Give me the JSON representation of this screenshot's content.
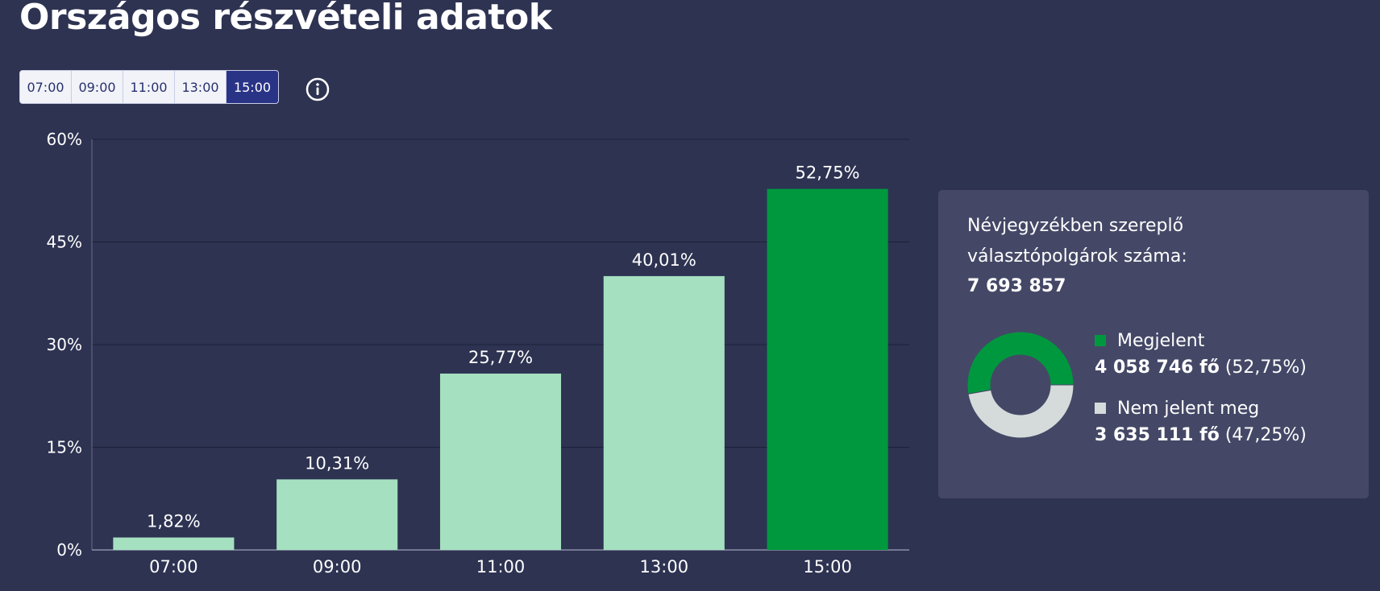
{
  "title": "Országos részvételi adatok",
  "time_tabs": [
    "07:00",
    "09:00",
    "11:00",
    "13:00",
    "15:00"
  ],
  "active_tab": "15:00",
  "chart_data": {
    "type": "bar",
    "categories": [
      "07:00",
      "09:00",
      "11:00",
      "13:00",
      "15:00"
    ],
    "values": [
      1.82,
      10.31,
      25.77,
      40.01,
      52.75
    ],
    "value_labels": [
      "1,82%",
      "10,31%",
      "25,77%",
      "40,01%",
      "52,75%"
    ],
    "ylim": [
      0,
      60
    ],
    "yticks": [
      0,
      15,
      30,
      45,
      60
    ],
    "ytick_labels": [
      "0%",
      "15%",
      "30%",
      "45%",
      "60%"
    ],
    "grid": true,
    "highlight_category": "15:00",
    "colors": {
      "bar": "#a5e0c0",
      "highlight": "#00983e"
    }
  },
  "summary": {
    "label": "Névjegyzékben szereplő választópolgárok száma:",
    "total": "7 693 857",
    "donut_data": {
      "type": "pie",
      "labels": [
        "Megjelent",
        "Nem jelent meg"
      ],
      "values": [
        52.75,
        47.25
      ],
      "colors": [
        "#00983e",
        "#d5dbdb"
      ]
    },
    "legend": [
      {
        "label": "Megjelent",
        "count": "4 058 746 fő",
        "percent": "(52,75%)",
        "color": "#00983e"
      },
      {
        "label": "Nem jelent meg",
        "count": "3 635 111 fő",
        "percent": "(47,25%)",
        "color": "#d5dbdb"
      }
    ]
  }
}
